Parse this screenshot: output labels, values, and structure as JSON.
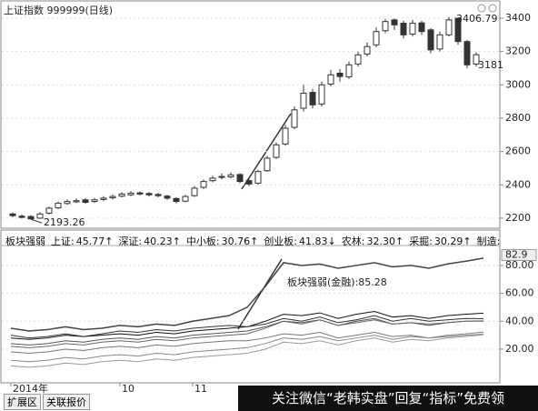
{
  "chart_data": [
    {
      "type": "candlestick",
      "title": "上证指数 999999(日线)",
      "open": [
        2225,
        2212,
        2210,
        2200,
        2230,
        2262,
        2288,
        2298,
        2310,
        2300,
        2312,
        2322,
        2332,
        2340,
        2352,
        2348,
        2342,
        2332,
        2318,
        2302,
        2335,
        2385,
        2425,
        2445,
        2448,
        2462,
        2425,
        2410,
        2485,
        2565,
        2645,
        2745,
        2860,
        2955,
        2885,
        3005,
        3070,
        3048,
        3125,
        3185,
        3240,
        3325,
        3390,
        3370,
        3305,
        3372,
        3330,
        3215,
        3300,
        3400,
        3260,
        3125
      ],
      "high": [
        2235,
        2222,
        2218,
        2235,
        2270,
        2300,
        2312,
        2318,
        2320,
        2322,
        2332,
        2342,
        2356,
        2362,
        2360,
        2356,
        2352,
        2340,
        2325,
        2340,
        2392,
        2432,
        2455,
        2468,
        2475,
        2470,
        2432,
        2490,
        2575,
        2655,
        2760,
        2870,
        3000,
        2975,
        3020,
        3090,
        3095,
        3140,
        3200,
        3255,
        3345,
        3395,
        3398,
        3385,
        3390,
        3385,
        3340,
        3320,
        3406.79,
        3402,
        3270,
        3195
      ],
      "low": [
        2205,
        2198,
        2193.26,
        2196,
        2222,
        2255,
        2280,
        2290,
        2286,
        2292,
        2302,
        2312,
        2325,
        2332,
        2336,
        2330,
        2325,
        2310,
        2288,
        2295,
        2328,
        2375,
        2415,
        2432,
        2438,
        2410,
        2392,
        2402,
        2478,
        2555,
        2635,
        2735,
        2840,
        2860,
        2870,
        2990,
        3020,
        3035,
        3110,
        3170,
        3225,
        3310,
        3330,
        3280,
        3290,
        3300,
        3190,
        3200,
        3290,
        3240,
        3100,
        3110
      ],
      "close": [
        2215,
        2205,
        2196,
        2225,
        2260,
        2290,
        2300,
        2305,
        2295,
        2310,
        2320,
        2330,
        2345,
        2350,
        2345,
        2340,
        2335,
        2320,
        2300,
        2330,
        2380,
        2420,
        2440,
        2450,
        2460,
        2420,
        2405,
        2480,
        2560,
        2640,
        2740,
        2850,
        2950,
        2880,
        3000,
        3060,
        3050,
        3120,
        3180,
        3230,
        3320,
        3380,
        3360,
        3300,
        3370,
        3320,
        3210,
        3300,
        3390,
        3260,
        3120,
        3181
      ],
      "low_label": 2193.26,
      "high_label": 3406.79,
      "last_label": 3181,
      "ylim": [
        2145,
        3482
      ],
      "yticks": [
        2200,
        2400,
        2600,
        2800,
        3000,
        3200,
        3400
      ],
      "grid": true,
      "color": "#333333"
    },
    {
      "type": "line",
      "indicator": "板块强弱",
      "annotation": "板块强弱(金融):85.28",
      "marker_label": 82.9,
      "series": [
        {
          "name": "金融",
          "color": "#444444",
          "values": [
            35,
            33,
            34,
            36,
            34,
            35,
            37,
            36,
            38,
            37,
            40,
            42,
            44,
            50,
            65,
            82,
            80,
            81,
            78,
            80,
            82,
            79,
            80,
            78,
            81,
            83,
            85.28
          ]
        },
        {
          "name": "上证:",
          "trend": "↑",
          "color": "#111111",
          "values": [
            28,
            27,
            28,
            30,
            29,
            30,
            31,
            30,
            32,
            31,
            33,
            34,
            35,
            36,
            40,
            45,
            44,
            46,
            42,
            45,
            47,
            43,
            44,
            42,
            44,
            45,
            45.77
          ]
        },
        {
          "name": "深证:",
          "trend": "↑",
          "color": "#555555",
          "values": [
            24,
            23,
            24,
            26,
            25,
            27,
            28,
            27,
            29,
            28,
            30,
            31,
            32,
            33,
            36,
            40,
            39,
            41,
            37,
            40,
            42,
            38,
            39,
            37,
            39,
            40,
            40.23
          ]
        },
        {
          "name": "中小板:",
          "trend": "↑",
          "color": "#777777",
          "values": [
            18,
            17,
            18,
            20,
            19,
            21,
            22,
            21,
            23,
            22,
            24,
            25,
            26,
            26,
            28,
            31,
            30,
            32,
            28,
            30,
            32,
            29,
            30,
            28,
            29,
            30,
            30.76
          ]
        },
        {
          "name": "创业板:",
          "trend": "↓",
          "color": "#333333",
          "values": [
            30,
            28,
            29,
            31,
            29,
            31,
            33,
            32,
            34,
            33,
            35,
            36,
            37,
            36,
            38,
            42,
            40,
            43,
            39,
            41,
            44,
            40,
            42,
            40,
            41,
            42,
            41.83
          ]
        },
        {
          "name": "农林:",
          "trend": "↑",
          "color": "#888888",
          "values": [
            12,
            11,
            12,
            14,
            13,
            15,
            16,
            15,
            17,
            16,
            18,
            19,
            20,
            21,
            24,
            28,
            27,
            29,
            26,
            28,
            30,
            27,
            29,
            28,
            30,
            31,
            32.3
          ],
          "value_labels": {
            "26": "32.30"
          }
        },
        {
          "name": "采掘:",
          "trend": "↑",
          "color": "#999999",
          "values": [
            8,
            7,
            8,
            10,
            9,
            11,
            12,
            11,
            13,
            12,
            14,
            15,
            16,
            17,
            20,
            25,
            24,
            26,
            23,
            26,
            28,
            25,
            27,
            26,
            28,
            29,
            30.29
          ]
        },
        {
          "name": "制造:",
          "color": "#666666",
          "values": [
            22,
            21,
            22,
            24,
            23,
            25,
            26,
            25,
            27,
            26,
            28,
            29,
            30,
            31,
            35,
            40,
            38,
            41,
            37,
            39,
            41,
            38,
            39,
            38,
            39,
            40,
            40
          ]
        }
      ],
      "ylim": [
        -3.5,
        93
      ],
      "yticks": [
        {
          "value": 20,
          "label": "20.00"
        },
        {
          "value": 40,
          "label": "40.00"
        },
        {
          "value": 60,
          "label": "60.00"
        },
        {
          "value": 80,
          "label": "80.00"
        }
      ],
      "xticks": [
        {
          "value": 0,
          "label": "2014年"
        },
        {
          "value": 6,
          "label": "10"
        },
        {
          "value": 10,
          "label": "11"
        }
      ],
      "grid": true
    }
  ],
  "tabs": [
    "扩展区",
    "关联报价"
  ],
  "watermark": "关注微信“老韩实盘”回复“指标”免费领"
}
